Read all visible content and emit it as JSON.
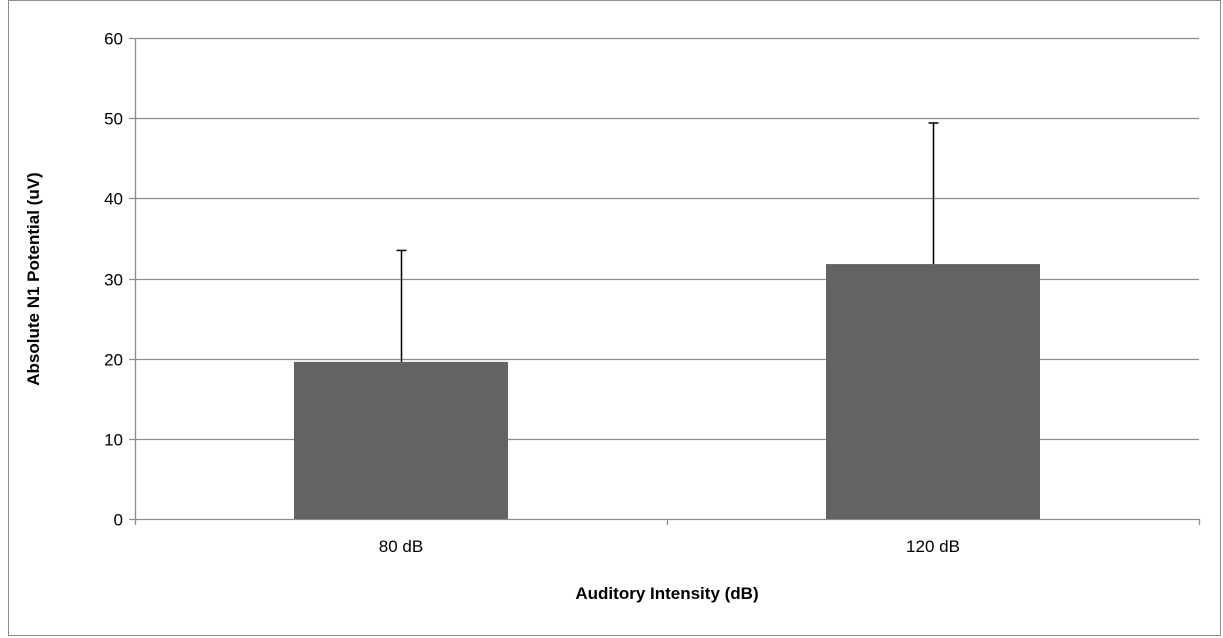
{
  "chart_data": {
    "type": "bar",
    "title": "",
    "xlabel": "Auditory Intensity (dB)",
    "ylabel": "Absolute N1 Potential (uV)",
    "categories": [
      "80 dB",
      "120 dB"
    ],
    "values": [
      19.6,
      31.8
    ],
    "error_plus": [
      13.9,
      17.6
    ],
    "ylim": [
      0,
      60
    ],
    "yticks": [
      "0",
      "10",
      "20",
      "30",
      "40",
      "50",
      "60"
    ],
    "grid": true,
    "legend": "none",
    "colors": {
      "bar": "#636363",
      "grid": "#8c8c8c",
      "axis": "#8c8c8c",
      "error_bar": "#000000"
    }
  }
}
